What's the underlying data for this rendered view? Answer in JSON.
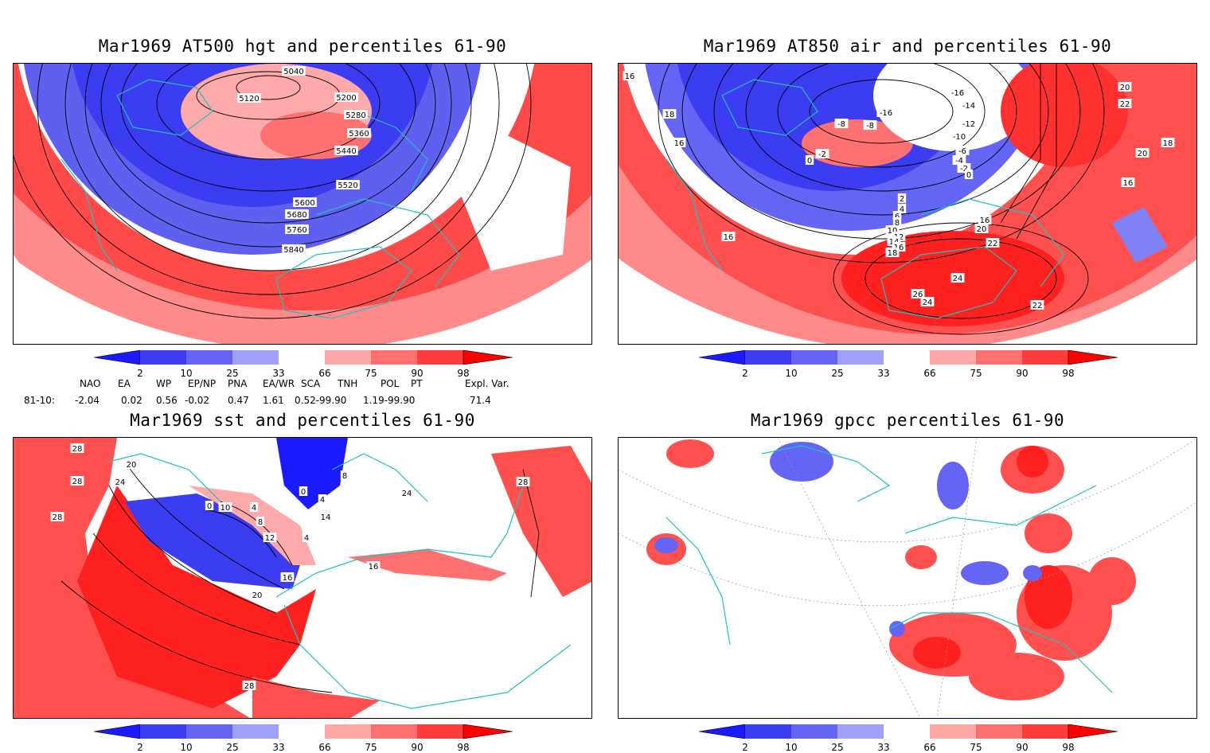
{
  "panels": [
    {
      "id": "p1",
      "title": "Mar1969 AT500 hgt and percentiles 61-90",
      "contour_labels": [
        "5040",
        "5120",
        "5200",
        "5280",
        "5360",
        "5440",
        "5520",
        "5600",
        "5680",
        "5760",
        "5840"
      ]
    },
    {
      "id": "p2",
      "title": "Mar1969 AT850 air and percentiles 61-90",
      "contour_labels": [
        "16",
        "18",
        "16",
        "-16",
        "-14",
        "-12",
        "-10",
        "-8",
        "-6",
        "-4",
        "-2",
        "0",
        "-2",
        "0",
        "2",
        "4",
        "6",
        "8",
        "10",
        "12",
        "14",
        "16",
        "18",
        "16",
        "20",
        "22",
        "24",
        "26",
        "24",
        "22",
        "20",
        "22",
        "20",
        "18",
        "16",
        "16",
        "-8",
        "-16"
      ]
    },
    {
      "id": "p3",
      "title": "Mar1969 sst and percentiles 61-90",
      "contour_labels": [
        "28",
        "28",
        "28",
        "24",
        "20",
        "0",
        "10",
        "4",
        "8",
        "12",
        "16",
        "20",
        "0",
        "4",
        "8",
        "4",
        "14",
        "16",
        "28",
        "24",
        "28"
      ]
    },
    {
      "id": "p4",
      "title": "Mar1969 gpcc percentiles 61-90",
      "contour_labels": []
    }
  ],
  "colorbar": {
    "labels": [
      "2",
      "10",
      "25",
      "33",
      "66",
      "75",
      "90",
      "98"
    ],
    "colors": [
      "#1a1aff",
      "#3c3cf0",
      "#6464f5",
      "#a0a0fa",
      "#ffffff",
      "#ffa8a8",
      "#ff7070",
      "#ff3c3c",
      "#ff0000"
    ]
  },
  "teleconnection": {
    "headers": [
      "NAO",
      "EA",
      "WP",
      "EP/NP",
      "PNA",
      "EA/WR",
      "SCA",
      "TNH",
      "POL",
      "PT",
      "Expl. Var."
    ],
    "row_label": "81-10:",
    "values": [
      "-2.04",
      "0.02",
      "0.56",
      "-0.02",
      "0.47",
      "1.61",
      "0.52-99.90",
      "1.19-99.90",
      "71.4"
    ]
  }
}
